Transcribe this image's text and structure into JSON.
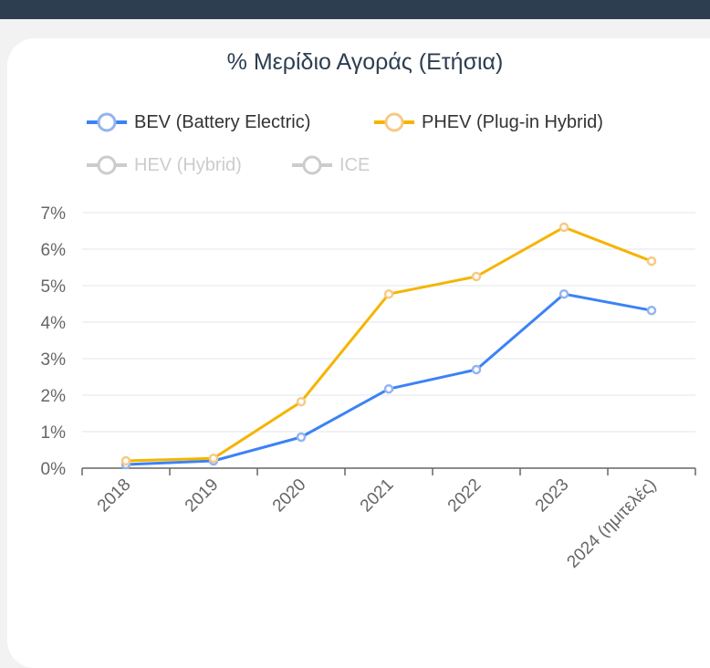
{
  "chart_data": {
    "type": "line",
    "title": "% Μερίδιο Αγοράς (Ετήσια)",
    "xlabel": "",
    "ylabel": "",
    "categories": [
      "2018",
      "2019",
      "2020",
      "2021",
      "2022",
      "2023",
      "2024 (ημιτελές)"
    ],
    "ylim": [
      0,
      7
    ],
    "yticks": [
      "0%",
      "1%",
      "2%",
      "3%",
      "4%",
      "5%",
      "6%",
      "7%"
    ],
    "grid": true,
    "legend_position": "top",
    "series": [
      {
        "name": "BEV (Battery Electric)",
        "color": "#3b82f6",
        "marker": "#93b4f0",
        "visible": true,
        "values": [
          0.1,
          0.2,
          0.85,
          2.17,
          2.7,
          4.77,
          4.32
        ]
      },
      {
        "name": "PHEV (Plug-in Hybrid)",
        "color": "#f5b400",
        "marker": "#f7ca84",
        "visible": true,
        "values": [
          0.2,
          0.27,
          1.82,
          4.77,
          5.25,
          6.6,
          5.67
        ]
      },
      {
        "name": "HEV (Hybrid)",
        "color": "#cccccc",
        "visible": false
      },
      {
        "name": "ICE",
        "color": "#cccccc",
        "visible": false
      }
    ]
  }
}
